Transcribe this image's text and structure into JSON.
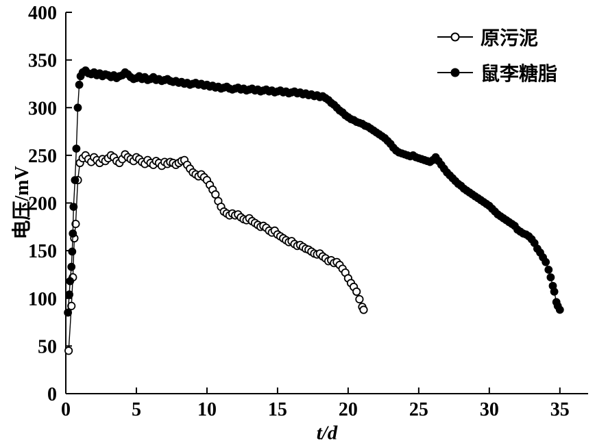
{
  "chart_data": {
    "type": "scatter",
    "title": "",
    "xlabel": "t/d",
    "ylabel": "电压/mV",
    "xlim": [
      0,
      37
    ],
    "ylim": [
      0,
      400
    ],
    "x_ticks": [
      0,
      5,
      10,
      15,
      20,
      25,
      30,
      35
    ],
    "y_ticks": [
      0,
      50,
      100,
      150,
      200,
      250,
      300,
      350,
      400
    ],
    "grid": false,
    "legend_position": "top-right",
    "colors": {
      "axis": "#000000",
      "marker_stroke": "#000000",
      "open_fill": "#ffffff",
      "filled_fill": "#000000"
    },
    "series": [
      {
        "id": "raw-sludge",
        "name": "原污泥",
        "marker": "open-circle",
        "color": "#000000",
        "points": [
          [
            0.2,
            45
          ],
          [
            0.4,
            92
          ],
          [
            0.5,
            122
          ],
          [
            0.6,
            163
          ],
          [
            0.7,
            178
          ],
          [
            0.85,
            224
          ],
          [
            1.0,
            242
          ],
          [
            1.2,
            247
          ],
          [
            1.4,
            250
          ],
          [
            1.6,
            246
          ],
          [
            1.8,
            243
          ],
          [
            2.0,
            248
          ],
          [
            2.2,
            245
          ],
          [
            2.4,
            242
          ],
          [
            2.6,
            246
          ],
          [
            2.8,
            244
          ],
          [
            3.0,
            247
          ],
          [
            3.2,
            250
          ],
          [
            3.4,
            248
          ],
          [
            3.6,
            244
          ],
          [
            3.8,
            242
          ],
          [
            4.0,
            246
          ],
          [
            4.2,
            251
          ],
          [
            4.4,
            248
          ],
          [
            4.6,
            246
          ],
          [
            4.8,
            244
          ],
          [
            5.0,
            248
          ],
          [
            5.2,
            246
          ],
          [
            5.4,
            243
          ],
          [
            5.6,
            241
          ],
          [
            5.8,
            245
          ],
          [
            6.0,
            242
          ],
          [
            6.2,
            240
          ],
          [
            6.4,
            244
          ],
          [
            6.6,
            242
          ],
          [
            6.8,
            239
          ],
          [
            7.0,
            243
          ],
          [
            7.2,
            241
          ],
          [
            7.4,
            243
          ],
          [
            7.6,
            242
          ],
          [
            7.8,
            240
          ],
          [
            8.0,
            242
          ],
          [
            8.2,
            244
          ],
          [
            8.4,
            245
          ],
          [
            8.6,
            240
          ],
          [
            8.8,
            236
          ],
          [
            9.0,
            232
          ],
          [
            9.2,
            230
          ],
          [
            9.4,
            228
          ],
          [
            9.6,
            230
          ],
          [
            9.8,
            227
          ],
          [
            10.0,
            224
          ],
          [
            10.2,
            219
          ],
          [
            10.4,
            214
          ],
          [
            10.6,
            209
          ],
          [
            10.8,
            202
          ],
          [
            11.0,
            196
          ],
          [
            11.2,
            191
          ],
          [
            11.4,
            189
          ],
          [
            11.6,
            187
          ],
          [
            11.8,
            189
          ],
          [
            12.0,
            187
          ],
          [
            12.2,
            188
          ],
          [
            12.4,
            185
          ],
          [
            12.6,
            183
          ],
          [
            12.8,
            182
          ],
          [
            13.0,
            184
          ],
          [
            13.2,
            181
          ],
          [
            13.4,
            179
          ],
          [
            13.6,
            177
          ],
          [
            13.8,
            175
          ],
          [
            14.0,
            176
          ],
          [
            14.2,
            174
          ],
          [
            14.4,
            171
          ],
          [
            14.6,
            169
          ],
          [
            14.8,
            171
          ],
          [
            15.0,
            167
          ],
          [
            15.2,
            165
          ],
          [
            15.4,
            163
          ],
          [
            15.6,
            161
          ],
          [
            15.8,
            159
          ],
          [
            16.0,
            160
          ],
          [
            16.2,
            157
          ],
          [
            16.4,
            155
          ],
          [
            16.6,
            156
          ],
          [
            16.8,
            154
          ],
          [
            17.0,
            152
          ],
          [
            17.2,
            151
          ],
          [
            17.4,
            149
          ],
          [
            17.6,
            147
          ],
          [
            17.8,
            146
          ],
          [
            18.0,
            147
          ],
          [
            18.2,
            144
          ],
          [
            18.4,
            142
          ],
          [
            18.6,
            139
          ],
          [
            18.8,
            140
          ],
          [
            19.0,
            137
          ],
          [
            19.2,
            138
          ],
          [
            19.4,
            135
          ],
          [
            19.6,
            131
          ],
          [
            19.8,
            127
          ],
          [
            20.0,
            121
          ],
          [
            20.2,
            116
          ],
          [
            20.4,
            112
          ],
          [
            20.6,
            107
          ],
          [
            20.8,
            99
          ],
          [
            21.0,
            91
          ],
          [
            21.1,
            88
          ]
        ]
      },
      {
        "id": "rhamnolipid",
        "name": "鼠李糖脂",
        "marker": "filled-circle",
        "color": "#000000",
        "points": [
          [
            0.15,
            85
          ],
          [
            0.25,
            104
          ],
          [
            0.3,
            118
          ],
          [
            0.4,
            133
          ],
          [
            0.45,
            149
          ],
          [
            0.5,
            168
          ],
          [
            0.55,
            196
          ],
          [
            0.65,
            224
          ],
          [
            0.75,
            257
          ],
          [
            0.85,
            300
          ],
          [
            0.95,
            324
          ],
          [
            1.05,
            333
          ],
          [
            1.2,
            337
          ],
          [
            1.4,
            339
          ],
          [
            1.6,
            336
          ],
          [
            1.8,
            335
          ],
          [
            2.0,
            337
          ],
          [
            2.2,
            334
          ],
          [
            2.4,
            336
          ],
          [
            2.6,
            333
          ],
          [
            2.8,
            335
          ],
          [
            3.0,
            334
          ],
          [
            3.2,
            332
          ],
          [
            3.4,
            334
          ],
          [
            3.6,
            331
          ],
          [
            3.8,
            333
          ],
          [
            4.0,
            334
          ],
          [
            4.2,
            337
          ],
          [
            4.4,
            335
          ],
          [
            4.6,
            332
          ],
          [
            4.8,
            330
          ],
          [
            5.0,
            331
          ],
          [
            5.2,
            333
          ],
          [
            5.4,
            330
          ],
          [
            5.6,
            332
          ],
          [
            5.8,
            329
          ],
          [
            6.0,
            330
          ],
          [
            6.2,
            332
          ],
          [
            6.4,
            329
          ],
          [
            6.6,
            330
          ],
          [
            6.8,
            328
          ],
          [
            7.0,
            329
          ],
          [
            7.2,
            330
          ],
          [
            7.4,
            328
          ],
          [
            7.6,
            327
          ],
          [
            7.8,
            328
          ],
          [
            8.0,
            326
          ],
          [
            8.2,
            327
          ],
          [
            8.4,
            325
          ],
          [
            8.6,
            326
          ],
          [
            8.8,
            324
          ],
          [
            9.0,
            325
          ],
          [
            9.2,
            326
          ],
          [
            9.4,
            324
          ],
          [
            9.6,
            325
          ],
          [
            9.8,
            323
          ],
          [
            10.0,
            324
          ],
          [
            10.2,
            322
          ],
          [
            10.4,
            323
          ],
          [
            10.6,
            321
          ],
          [
            10.8,
            322
          ],
          [
            11.0,
            320
          ],
          [
            11.2,
            321
          ],
          [
            11.4,
            322
          ],
          [
            11.6,
            320
          ],
          [
            11.8,
            319
          ],
          [
            12.0,
            320
          ],
          [
            12.2,
            321
          ],
          [
            12.4,
            319
          ],
          [
            12.6,
            320
          ],
          [
            12.8,
            318
          ],
          [
            13.0,
            319
          ],
          [
            13.2,
            320
          ],
          [
            13.4,
            318
          ],
          [
            13.6,
            319
          ],
          [
            13.8,
            317
          ],
          [
            14.0,
            318
          ],
          [
            14.2,
            319
          ],
          [
            14.4,
            317
          ],
          [
            14.6,
            318
          ],
          [
            14.8,
            316
          ],
          [
            15.0,
            317
          ],
          [
            15.2,
            318
          ],
          [
            15.4,
            316
          ],
          [
            15.6,
            317
          ],
          [
            15.8,
            315
          ],
          [
            16.0,
            316
          ],
          [
            16.2,
            317
          ],
          [
            16.4,
            315
          ],
          [
            16.6,
            316
          ],
          [
            16.8,
            314
          ],
          [
            17.0,
            315
          ],
          [
            17.2,
            313
          ],
          [
            17.4,
            314
          ],
          [
            17.6,
            312
          ],
          [
            17.8,
            313
          ],
          [
            18.0,
            311
          ],
          [
            18.2,
            312
          ],
          [
            18.4,
            310
          ],
          [
            18.6,
            308
          ],
          [
            18.8,
            305
          ],
          [
            19.0,
            303
          ],
          [
            19.2,
            300
          ],
          [
            19.4,
            297
          ],
          [
            19.6,
            295
          ],
          [
            19.8,
            292
          ],
          [
            20.0,
            290
          ],
          [
            20.2,
            288
          ],
          [
            20.4,
            287
          ],
          [
            20.6,
            285
          ],
          [
            20.8,
            284
          ],
          [
            21.0,
            283
          ],
          [
            21.2,
            281
          ],
          [
            21.4,
            280
          ],
          [
            21.6,
            278
          ],
          [
            21.8,
            276
          ],
          [
            22.0,
            274
          ],
          [
            22.2,
            272
          ],
          [
            22.4,
            270
          ],
          [
            22.6,
            268
          ],
          [
            22.8,
            265
          ],
          [
            23.0,
            262
          ],
          [
            23.2,
            258
          ],
          [
            23.4,
            255
          ],
          [
            23.6,
            253
          ],
          [
            23.8,
            252
          ],
          [
            24.0,
            251
          ],
          [
            24.2,
            250
          ],
          [
            24.4,
            249
          ],
          [
            24.6,
            250
          ],
          [
            24.8,
            248
          ],
          [
            25.0,
            247
          ],
          [
            25.2,
            246
          ],
          [
            25.4,
            245
          ],
          [
            25.6,
            244
          ],
          [
            25.8,
            243
          ],
          [
            26.0,
            245
          ],
          [
            26.2,
            248
          ],
          [
            26.4,
            244
          ],
          [
            26.6,
            240
          ],
          [
            26.8,
            236
          ],
          [
            27.0,
            232
          ],
          [
            27.2,
            229
          ],
          [
            27.4,
            226
          ],
          [
            27.6,
            223
          ],
          [
            27.8,
            220
          ],
          [
            28.0,
            218
          ],
          [
            28.2,
            215
          ],
          [
            28.4,
            213
          ],
          [
            28.6,
            211
          ],
          [
            28.8,
            209
          ],
          [
            29.0,
            207
          ],
          [
            29.2,
            205
          ],
          [
            29.4,
            203
          ],
          [
            29.6,
            201
          ],
          [
            29.8,
            199
          ],
          [
            30.0,
            197
          ],
          [
            30.2,
            194
          ],
          [
            30.4,
            191
          ],
          [
            30.6,
            188
          ],
          [
            30.8,
            186
          ],
          [
            31.0,
            184
          ],
          [
            31.2,
            182
          ],
          [
            31.4,
            180
          ],
          [
            31.6,
            178
          ],
          [
            31.8,
            176
          ],
          [
            32.0,
            172
          ],
          [
            32.2,
            170
          ],
          [
            32.4,
            168
          ],
          [
            32.6,
            167
          ],
          [
            32.8,
            165
          ],
          [
            33.0,
            162
          ],
          [
            33.2,
            158
          ],
          [
            33.4,
            152
          ],
          [
            33.6,
            148
          ],
          [
            33.8,
            143
          ],
          [
            34.0,
            138
          ],
          [
            34.2,
            130
          ],
          [
            34.35,
            122
          ],
          [
            34.5,
            113
          ],
          [
            34.6,
            107
          ],
          [
            34.75,
            96
          ],
          [
            34.85,
            92
          ],
          [
            35.0,
            88
          ]
        ]
      }
    ]
  }
}
